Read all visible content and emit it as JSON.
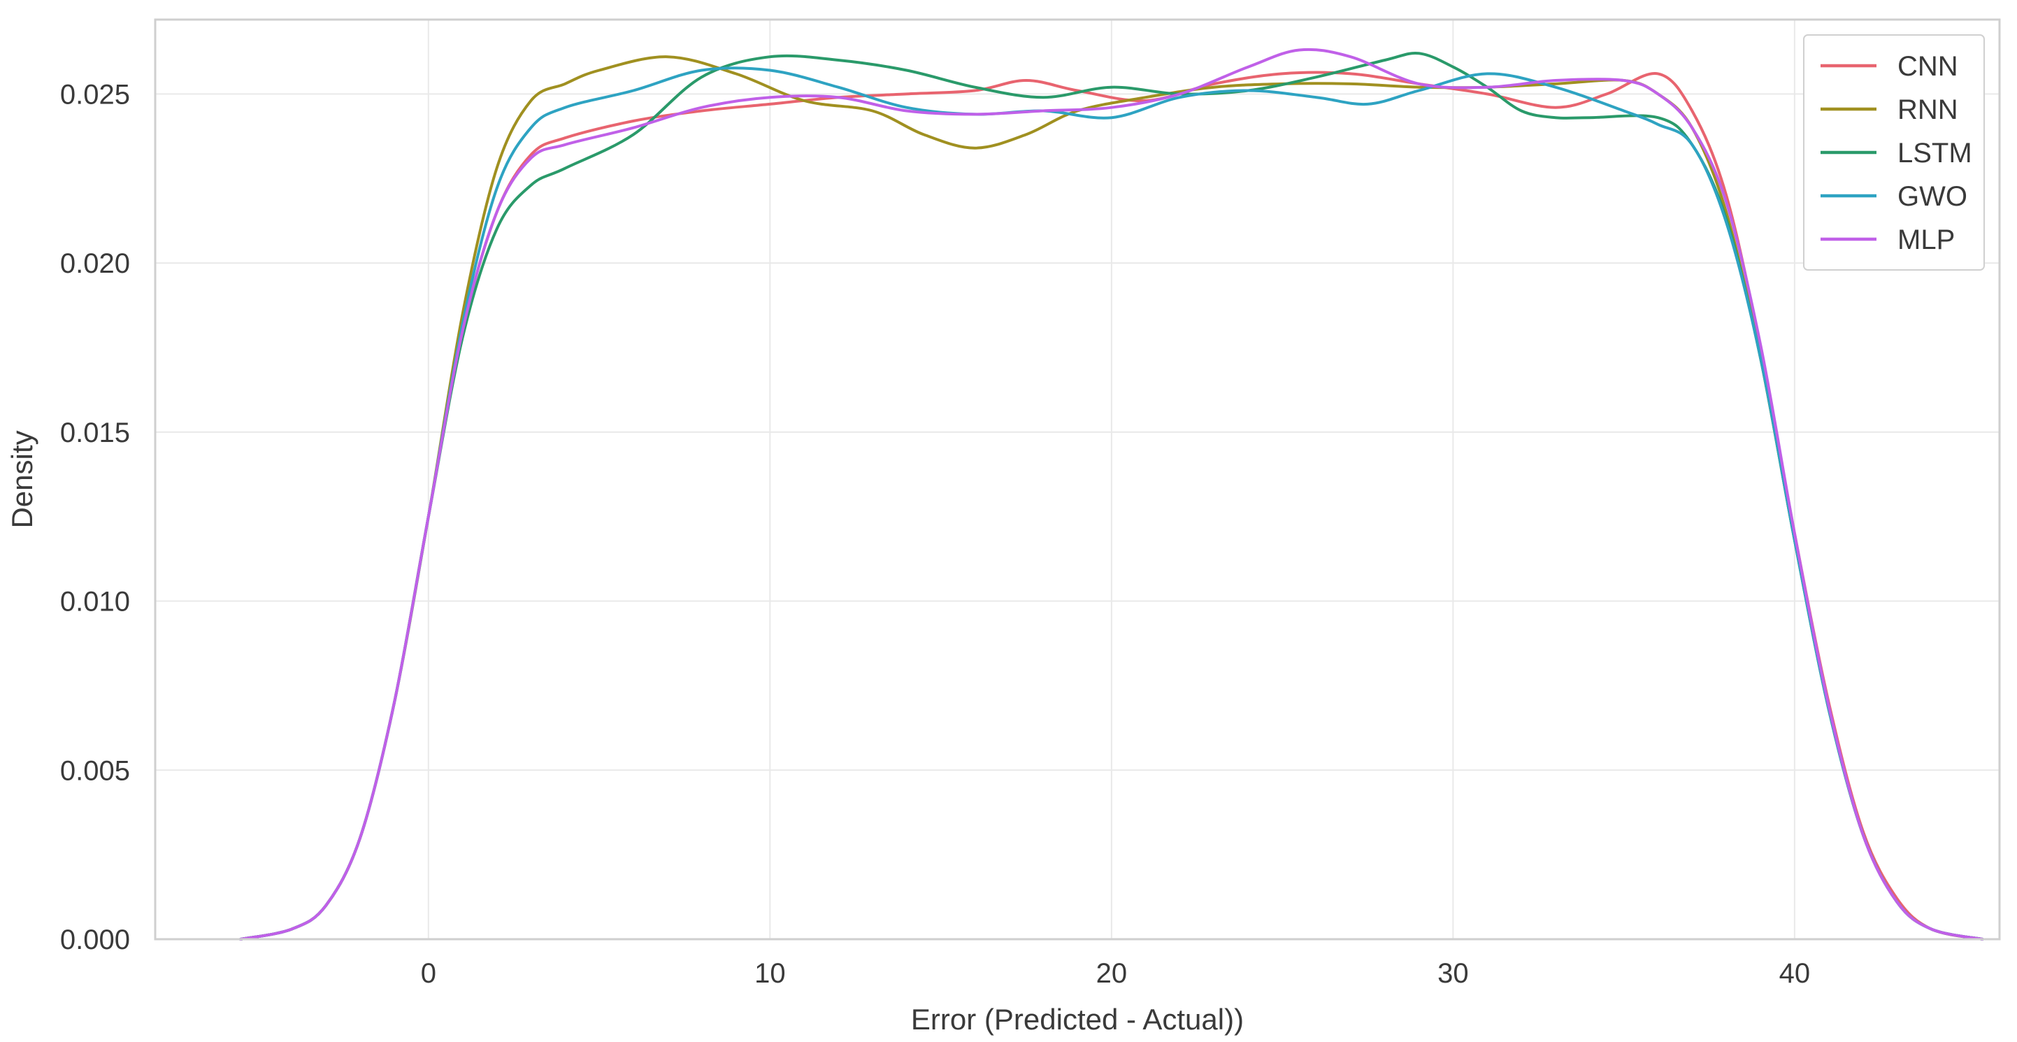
{
  "chart_data": {
    "type": "line",
    "title": "",
    "xlabel": "Error (Predicted - Actual))",
    "ylabel": "Density",
    "xlim": [
      -8,
      46
    ],
    "ylim": [
      0,
      0.0272
    ],
    "xticks": [
      0,
      10,
      20,
      30,
      40
    ],
    "yticks": [
      0.0,
      0.005,
      0.01,
      0.015,
      0.02,
      0.025
    ],
    "xtick_labels": [
      "0",
      "10",
      "20",
      "30",
      "40"
    ],
    "ytick_labels": [
      "0.000",
      "0.005",
      "0.010",
      "0.015",
      "0.020",
      "0.025"
    ],
    "grid": true,
    "legend_position": "top-right",
    "series": [
      {
        "name": "CNN",
        "color": "#e8646f",
        "x": [
          -5.5,
          -4,
          -3,
          -2,
          -1,
          0,
          1,
          2,
          3,
          4,
          6,
          8,
          10,
          12,
          14,
          16,
          17.5,
          19,
          21,
          23,
          25,
          27,
          29,
          31,
          33,
          34.5,
          36,
          37,
          38,
          39,
          40,
          41,
          42,
          43,
          44,
          45.5
        ],
        "y": [
          0.0,
          0.0003,
          0.001,
          0.003,
          0.007,
          0.0125,
          0.018,
          0.0215,
          0.0232,
          0.0237,
          0.0242,
          0.0245,
          0.0247,
          0.0249,
          0.025,
          0.0251,
          0.0254,
          0.0251,
          0.0248,
          0.0253,
          0.0256,
          0.0256,
          0.0253,
          0.025,
          0.0246,
          0.025,
          0.0256,
          0.0245,
          0.022,
          0.0175,
          0.012,
          0.007,
          0.0032,
          0.0012,
          0.0003,
          0.0
        ]
      },
      {
        "name": "RNN",
        "color": "#a09020",
        "x": [
          -5.5,
          -4,
          -3,
          -2,
          -1,
          0,
          1,
          2,
          3,
          4,
          5,
          7,
          9,
          11,
          13,
          14.5,
          16,
          17.5,
          19,
          21,
          23,
          25,
          27,
          29,
          31,
          33,
          35,
          36,
          37,
          38,
          39,
          40,
          41,
          42,
          43,
          44,
          45.5
        ],
        "y": [
          0.0,
          0.0003,
          0.001,
          0.003,
          0.007,
          0.0125,
          0.0185,
          0.0228,
          0.0248,
          0.0253,
          0.0257,
          0.0261,
          0.0256,
          0.0248,
          0.0245,
          0.0238,
          0.0234,
          0.0238,
          0.0245,
          0.0249,
          0.0252,
          0.0253,
          0.0253,
          0.0252,
          0.0252,
          0.0253,
          0.0254,
          0.025,
          0.024,
          0.0215,
          0.0172,
          0.0118,
          0.0068,
          0.0031,
          0.0011,
          0.0003,
          0.0
        ]
      },
      {
        "name": "LSTM",
        "color": "#2a9a6a",
        "x": [
          -5.5,
          -4,
          -3,
          -2,
          -1,
          0,
          1,
          2,
          3,
          4,
          6,
          8,
          10,
          12,
          14,
          16,
          18,
          20,
          22,
          24,
          26,
          28,
          29,
          30,
          31,
          32,
          33,
          34,
          36,
          37,
          38,
          39,
          40,
          41,
          42,
          43,
          44,
          45.5
        ],
        "y": [
          0.0,
          0.0003,
          0.001,
          0.003,
          0.007,
          0.0125,
          0.0178,
          0.021,
          0.0223,
          0.0228,
          0.0238,
          0.0255,
          0.0261,
          0.026,
          0.0257,
          0.0252,
          0.0249,
          0.0252,
          0.025,
          0.0251,
          0.0255,
          0.026,
          0.0262,
          0.0258,
          0.0252,
          0.0245,
          0.0243,
          0.0243,
          0.0243,
          0.0235,
          0.0213,
          0.0172,
          0.0118,
          0.0068,
          0.0031,
          0.0011,
          0.0003,
          0.0
        ]
      },
      {
        "name": "GWO",
        "color": "#2ea3c2",
        "x": [
          -5.5,
          -4,
          -3,
          -2,
          -1,
          0,
          1,
          2,
          3,
          4,
          6,
          8,
          10,
          12,
          14,
          16,
          18,
          20,
          22,
          24,
          26,
          27.5,
          29,
          31,
          33,
          35,
          36,
          37,
          38,
          39,
          40,
          41,
          42,
          43,
          44,
          45.5
        ],
        "y": [
          0.0,
          0.0003,
          0.001,
          0.003,
          0.007,
          0.0125,
          0.0182,
          0.0222,
          0.024,
          0.0246,
          0.0251,
          0.0257,
          0.0257,
          0.0252,
          0.0246,
          0.0244,
          0.0245,
          0.0243,
          0.0249,
          0.0251,
          0.0249,
          0.0247,
          0.0251,
          0.0256,
          0.0252,
          0.0245,
          0.0241,
          0.0235,
          0.0212,
          0.0172,
          0.0118,
          0.0068,
          0.0031,
          0.0011,
          0.0003,
          0.0
        ]
      },
      {
        "name": "MLP",
        "color": "#c060e8",
        "x": [
          -5.5,
          -4,
          -3,
          -2,
          -1,
          0,
          1,
          2,
          3,
          4,
          6,
          8,
          10,
          12,
          14,
          16,
          18,
          20,
          22,
          24,
          25.5,
          27,
          29,
          31,
          33,
          35,
          36,
          37,
          38,
          39,
          40,
          41,
          42,
          43,
          44,
          45.5
        ],
        "y": [
          0.0,
          0.0003,
          0.001,
          0.003,
          0.007,
          0.0125,
          0.018,
          0.0215,
          0.0231,
          0.0235,
          0.024,
          0.0246,
          0.0249,
          0.0249,
          0.0245,
          0.0244,
          0.0245,
          0.0246,
          0.025,
          0.0258,
          0.0263,
          0.0261,
          0.0253,
          0.0252,
          0.0254,
          0.0254,
          0.025,
          0.024,
          0.0218,
          0.0176,
          0.012,
          0.0069,
          0.0031,
          0.0011,
          0.0003,
          0.0
        ]
      }
    ]
  }
}
